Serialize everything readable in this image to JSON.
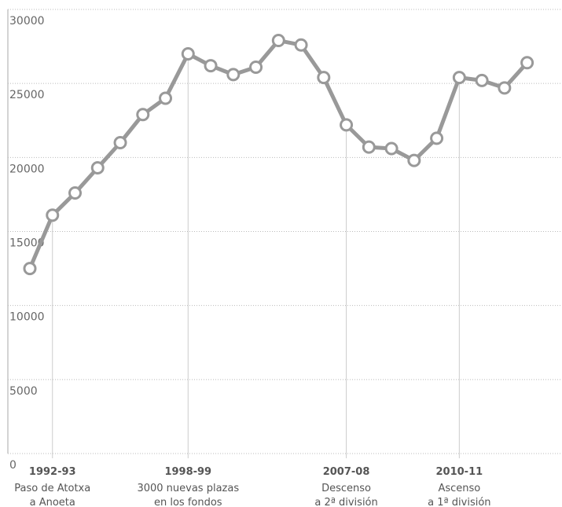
{
  "chart_data": {
    "type": "line",
    "categories": [
      null,
      "1992-93",
      null,
      null,
      null,
      null,
      null,
      "1998-99",
      null,
      null,
      null,
      null,
      null,
      null,
      "2007-08",
      null,
      null,
      null,
      null,
      "2010-11",
      null,
      null,
      null
    ],
    "notes": [
      null,
      [
        "Paso de Atotxa",
        "a Anoeta"
      ],
      null,
      null,
      null,
      null,
      null,
      [
        "3000 nuevas plazas",
        "en los fondos"
      ],
      null,
      null,
      null,
      null,
      null,
      null,
      [
        "Descenso",
        "a 2ª división"
      ],
      null,
      null,
      null,
      null,
      [
        "Ascenso",
        "a 1ª división"
      ],
      null,
      null,
      null
    ],
    "series": [
      {
        "color": "#999999",
        "values": [
          12500,
          16100,
          17600,
          19300,
          21000,
          22900,
          24000,
          27000,
          26200,
          25600,
          26100,
          27900,
          27600,
          25400,
          22200,
          20700,
          20600,
          19800,
          21300,
          25400,
          25200,
          24700,
          26400
        ]
      }
    ],
    "ylim": [
      0,
      30000
    ],
    "yticks": [
      0,
      5000,
      10000,
      15000,
      20000,
      25000,
      30000
    ],
    "grid": true
  }
}
